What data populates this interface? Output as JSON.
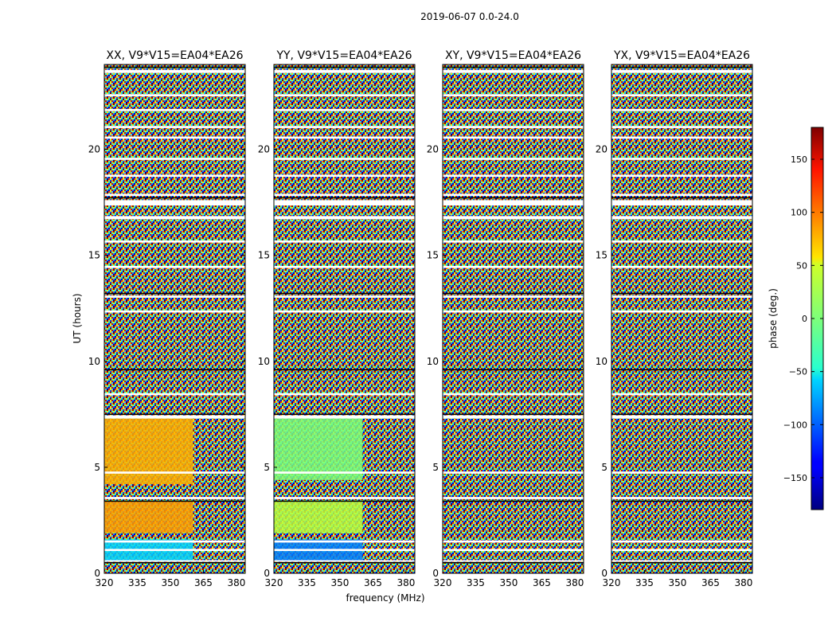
{
  "figure": {
    "suptitle": "2019-06-07 0.0-24.0"
  },
  "chart_data": {
    "type": "heatmap",
    "colormap": "jet",
    "xlabel": "frequency (MHz)",
    "ylabel": "UT (hours)",
    "xticks": [
      "320",
      "335",
      "350",
      "365",
      "380"
    ],
    "yticks": [
      "0",
      "5",
      "10",
      "15",
      "20"
    ],
    "xlim": [
      320,
      384
    ],
    "ylim": [
      0,
      24
    ],
    "panels": [
      {
        "title": "XX, V9*V15=EA04*EA26"
      },
      {
        "title": "YY, V9*V15=EA04*EA26"
      },
      {
        "title": "XY, V9*V15=EA04*EA26"
      },
      {
        "title": "YX, V9*V15=EA04*EA26"
      }
    ],
    "colorbar": {
      "label": "phase (deg.)",
      "range": [
        -180,
        180
      ],
      "ticks": [
        "150",
        "100",
        "50",
        "0",
        "−50",
        "−100",
        "−150"
      ],
      "tick_values": [
        150,
        100,
        50,
        0,
        -50,
        -100,
        -150
      ]
    },
    "colors": {
      "flagged_rows": "#ffffff",
      "gaps": "#000000"
    }
  }
}
